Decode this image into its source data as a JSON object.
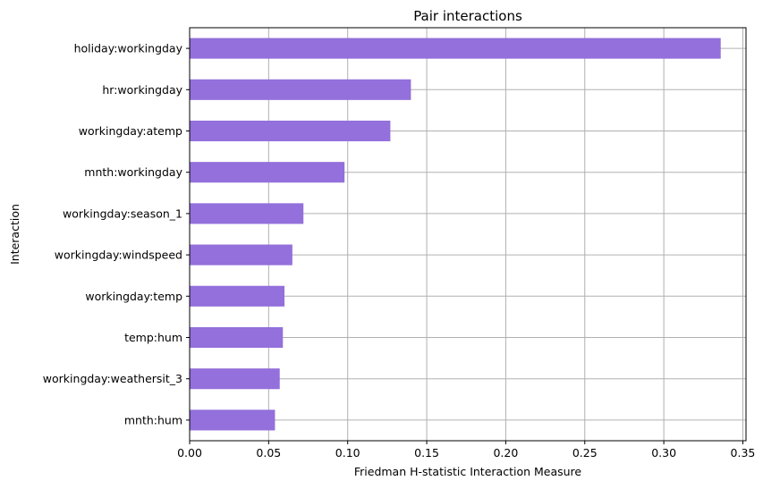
{
  "chart_data": {
    "type": "bar",
    "orientation": "horizontal",
    "title": "Pair interactions",
    "xlabel": "Friedman H-statistic Interaction Measure",
    "ylabel": "Interaction",
    "categories": [
      "holiday:workingday",
      "hr:workingday",
      "workingday:atemp",
      "mnth:workingday",
      "workingday:season_1",
      "workingday:windspeed",
      "workingday:temp",
      "temp:hum",
      "workingday:weathersit_3",
      "mnth:hum"
    ],
    "values": [
      0.336,
      0.14,
      0.127,
      0.098,
      0.072,
      0.065,
      0.06,
      0.059,
      0.057,
      0.054
    ],
    "xlim": [
      0,
      0.352
    ],
    "xticks": [
      0.0,
      0.05,
      0.1,
      0.15,
      0.2,
      0.25,
      0.3,
      0.35
    ],
    "xtick_labels": [
      "0.00",
      "0.05",
      "0.10",
      "0.15",
      "0.20",
      "0.25",
      "0.30",
      "0.35"
    ],
    "grid": true,
    "bar_color": "#9370DB",
    "grid_color": "#b0b0b0"
  }
}
